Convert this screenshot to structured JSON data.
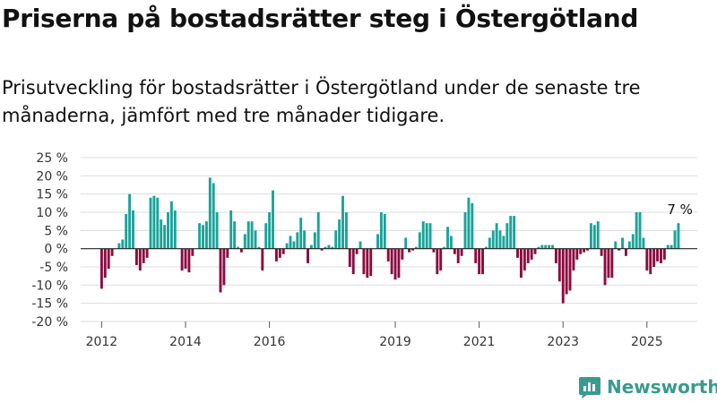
{
  "header": {
    "title": "Priserna på bostadsrätter steg i Östergötland",
    "subtitle": "Prisutveckling för bostadsrätter i Östergötland under de senaste tre månaderna, jämfört med tre månader tidigare."
  },
  "brand": {
    "name": "Newsworthy",
    "color": "#3a9a8f"
  },
  "chart_data": {
    "type": "bar",
    "title": "Priserna på bostadsrätter steg i Östergötland",
    "subtitle": "Prisutveckling för bostadsrätter i Östergötland under de senaste tre månaderna, jämfört med tre månader tidigare.",
    "ylim": [
      -20,
      25
    ],
    "y_ticks": [
      25,
      20,
      15,
      10,
      5,
      0,
      -5,
      -10,
      -15,
      -20
    ],
    "y_tick_labels": [
      "25 %",
      "20 %",
      "15 %",
      "10 %",
      "5 %",
      "0 %",
      "-5 %",
      "-10 %",
      "-15 %",
      "-20 %"
    ],
    "x_ticks": [
      2012,
      2014,
      2016,
      2019,
      2021,
      2023,
      2025
    ],
    "grid": true,
    "positive_color": "#1aa39a",
    "negative_color": "#8c0a3f",
    "x_start": "2012-01",
    "x_end": "2025-08",
    "values": [
      -11,
      -8,
      -5.5,
      -2,
      0,
      1.5,
      2.5,
      9.5,
      15,
      10.5,
      -4.5,
      -6,
      -4,
      -2.5,
      14,
      14.5,
      14,
      8,
      6.5,
      10,
      13,
      10.5,
      0,
      -6,
      -5.5,
      -6.5,
      -2,
      0,
      7,
      6.5,
      7.5,
      19.5,
      18,
      10,
      -12,
      -10,
      -2.5,
      10.5,
      7.5,
      0.5,
      -1,
      4,
      7.5,
      7.5,
      5,
      0.5,
      -6,
      7,
      10,
      16,
      -3.5,
      -2.5,
      -1.5,
      1.5,
      3.5,
      2,
      4.5,
      8.5,
      5,
      -4,
      1,
      4.5,
      10,
      -0.5,
      0.5,
      1,
      0.5,
      5,
      8,
      14.5,
      10,
      -5,
      -7,
      -1.5,
      2,
      -7,
      -8,
      -7.5,
      0,
      4,
      10,
      9.5,
      -3.5,
      -7,
      -8.5,
      -8,
      -3,
      3,
      -1,
      -0.5,
      0.5,
      4.5,
      7.5,
      7,
      7,
      -1,
      -7,
      -6,
      0.5,
      6,
      3.5,
      -1.5,
      -4,
      -2,
      10,
      14,
      12.5,
      -4,
      -7,
      -7,
      0.5,
      3,
      5,
      7,
      5,
      3.5,
      7,
      9,
      9,
      -2.5,
      -8,
      -6,
      -4,
      -3,
      -1.5,
      0.5,
      1,
      1,
      1,
      1,
      -4,
      -9,
      -15,
      -12.5,
      -11.5,
      -6,
      -3,
      -1.5,
      -1,
      -0.5,
      7,
      6.5,
      7.5,
      -2,
      -10,
      -8,
      -8,
      2,
      -0.5,
      3,
      -2,
      2,
      4,
      10,
      10,
      3,
      -6,
      -7,
      -5,
      -3.5,
      -4,
      -3,
      1,
      1,
      5,
      7
    ],
    "annotations": [
      {
        "label": "7 %"
      }
    ]
  }
}
